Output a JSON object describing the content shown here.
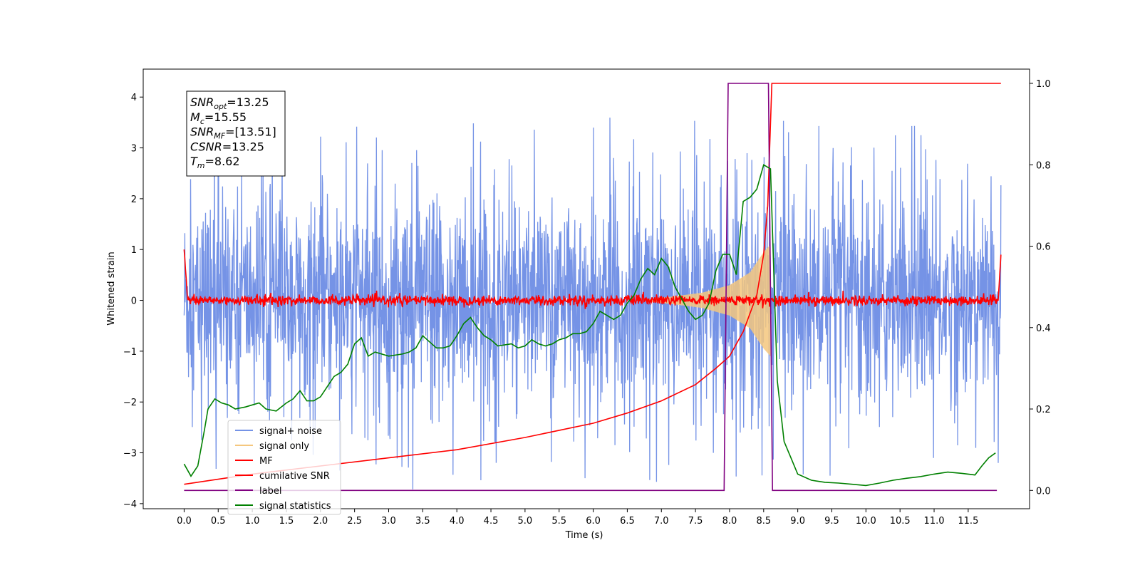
{
  "chart_data": {
    "type": "line",
    "xlabel": "Time (s)",
    "ylabel": "Whitened strain",
    "xlim": [
      -0.6,
      12.4
    ],
    "ylim": [
      -4.1,
      4.55
    ],
    "y2lim": [
      -0.045,
      1.035
    ],
    "x_ticks": [
      "0.0",
      "0.5",
      "1.0",
      "1.5",
      "2.0",
      "2.5",
      "3.0",
      "3.5",
      "4.0",
      "4.5",
      "5.0",
      "5.5",
      "6.0",
      "6.5",
      "7.0",
      "7.5",
      "8.0",
      "8.5",
      "9.0",
      "9.5",
      "10.0",
      "10.5",
      "11.0",
      "11.5"
    ],
    "y_ticks": [
      "−4",
      "−3",
      "−2",
      "−1",
      "0",
      "1",
      "2",
      "3",
      "4"
    ],
    "y2_ticks": [
      "0.0",
      "0.2",
      "0.4",
      "0.6",
      "0.8",
      "1.0"
    ],
    "info_box": [
      {
        "name": "SNR",
        "sub": "opt",
        "value": "=13.25"
      },
      {
        "name": "M",
        "sub": "c",
        "value": "=15.55"
      },
      {
        "name": "SNR",
        "sub": "MF",
        "value": "=[13.51]"
      },
      {
        "name": "CSNR",
        "sub": "",
        "value": "=13.25"
      },
      {
        "name": "T",
        "sub": "m",
        "value": "=8.62"
      }
    ],
    "legend": [
      {
        "label": "signal+ noise",
        "color": "#7593e6"
      },
      {
        "label": "signal only",
        "color": "#f5c77e"
      },
      {
        "label": "MF",
        "color": "#ff0000"
      },
      {
        "label": "cumilative SNR",
        "color": "#ff0000"
      },
      {
        "label": "label",
        "color": "#800080"
      },
      {
        "label": "signal statistics",
        "color": "#008000"
      }
    ],
    "legend_placement": "lower-left",
    "series": [
      {
        "name": "signal+ noise",
        "axis": "left",
        "color": "#7593e6",
        "description_values": {
          "x_start": 0.0,
          "x_end": 11.98,
          "typical_envelope": [
            -2.3,
            2.3
          ],
          "peak_max": 4.15,
          "peak_min": -3.72
        }
      },
      {
        "name": "signal only",
        "axis": "left",
        "color": "#f5c77e",
        "chirp_envelope": {
          "x": [
            6.8,
            7.2,
            7.6,
            8.0,
            8.3,
            8.5,
            8.6
          ],
          "amplitude": [
            0.02,
            0.08,
            0.15,
            0.3,
            0.55,
            0.95,
            1.1
          ]
        }
      },
      {
        "name": "MF",
        "axis": "left",
        "color": "#ff0000",
        "description_values": {
          "x_start": 0.0,
          "x_end": 11.98,
          "start_value": 1.0,
          "end_value": 0.9,
          "noise_band": [
            -0.1,
            0.12
          ]
        }
      },
      {
        "name": "cumilative SNR",
        "axis": "right",
        "color": "#ff0000",
        "x": [
          0.0,
          1.0,
          2.0,
          3.0,
          4.0,
          5.0,
          6.0,
          6.5,
          7.0,
          7.5,
          7.8,
          8.0,
          8.2,
          8.4,
          8.5,
          8.56,
          8.62,
          11.98
        ],
        "y": [
          0.015,
          0.04,
          0.06,
          0.08,
          0.1,
          0.13,
          0.165,
          0.19,
          0.22,
          0.26,
          0.3,
          0.33,
          0.39,
          0.48,
          0.58,
          0.7,
          1.0,
          1.0
        ]
      },
      {
        "name": "label",
        "axis": "right",
        "color": "#800080",
        "x": [
          0.0,
          7.92,
          7.98,
          8.57,
          8.63,
          11.92
        ],
        "y": [
          0.0,
          0.0,
          1.0,
          1.0,
          0.0,
          0.0
        ]
      },
      {
        "name": "signal statistics",
        "axis": "right",
        "color": "#008000",
        "x": [
          0.0,
          0.1,
          0.2,
          0.3,
          0.35,
          0.45,
          0.55,
          0.65,
          0.75,
          0.9,
          1.0,
          1.1,
          1.2,
          1.35,
          1.5,
          1.6,
          1.7,
          1.8,
          1.9,
          2.0,
          2.1,
          2.2,
          2.3,
          2.4,
          2.5,
          2.6,
          2.7,
          2.8,
          3.0,
          3.2,
          3.3,
          3.4,
          3.5,
          3.6,
          3.7,
          3.8,
          3.9,
          4.0,
          4.1,
          4.2,
          4.3,
          4.4,
          4.5,
          4.6,
          4.8,
          4.9,
          5.0,
          5.1,
          5.2,
          5.3,
          5.4,
          5.5,
          5.6,
          5.7,
          5.8,
          5.9,
          6.0,
          6.1,
          6.2,
          6.3,
          6.4,
          6.5,
          6.6,
          6.7,
          6.8,
          6.9,
          7.0,
          7.1,
          7.2,
          7.3,
          7.4,
          7.5,
          7.6,
          7.7,
          7.8,
          7.9,
          8.0,
          8.1,
          8.2,
          8.3,
          8.4,
          8.5,
          8.6,
          8.7,
          8.8,
          8.9,
          9.0,
          9.2,
          9.4,
          9.6,
          9.8,
          10.0,
          10.2,
          10.4,
          10.6,
          10.8,
          11.0,
          11.2,
          11.4,
          11.6,
          11.7,
          11.8,
          11.9
        ],
        "y": [
          0.065,
          0.035,
          0.06,
          0.15,
          0.2,
          0.225,
          0.215,
          0.21,
          0.2,
          0.205,
          0.21,
          0.215,
          0.2,
          0.195,
          0.215,
          0.225,
          0.245,
          0.22,
          0.22,
          0.23,
          0.255,
          0.28,
          0.29,
          0.31,
          0.36,
          0.375,
          0.33,
          0.34,
          0.33,
          0.335,
          0.34,
          0.35,
          0.38,
          0.365,
          0.35,
          0.35,
          0.355,
          0.38,
          0.41,
          0.425,
          0.4,
          0.38,
          0.37,
          0.355,
          0.36,
          0.35,
          0.355,
          0.37,
          0.36,
          0.355,
          0.36,
          0.37,
          0.375,
          0.385,
          0.385,
          0.39,
          0.41,
          0.44,
          0.43,
          0.42,
          0.43,
          0.46,
          0.48,
          0.52,
          0.545,
          0.53,
          0.57,
          0.55,
          0.5,
          0.47,
          0.44,
          0.42,
          0.43,
          0.46,
          0.54,
          0.58,
          0.58,
          0.53,
          0.71,
          0.72,
          0.74,
          0.8,
          0.79,
          0.27,
          0.12,
          0.08,
          0.04,
          0.025,
          0.02,
          0.018,
          0.015,
          0.012,
          0.018,
          0.025,
          0.03,
          0.034,
          0.04,
          0.045,
          0.042,
          0.038,
          0.06,
          0.08,
          0.092
        ]
      }
    ],
    "grid": false
  }
}
